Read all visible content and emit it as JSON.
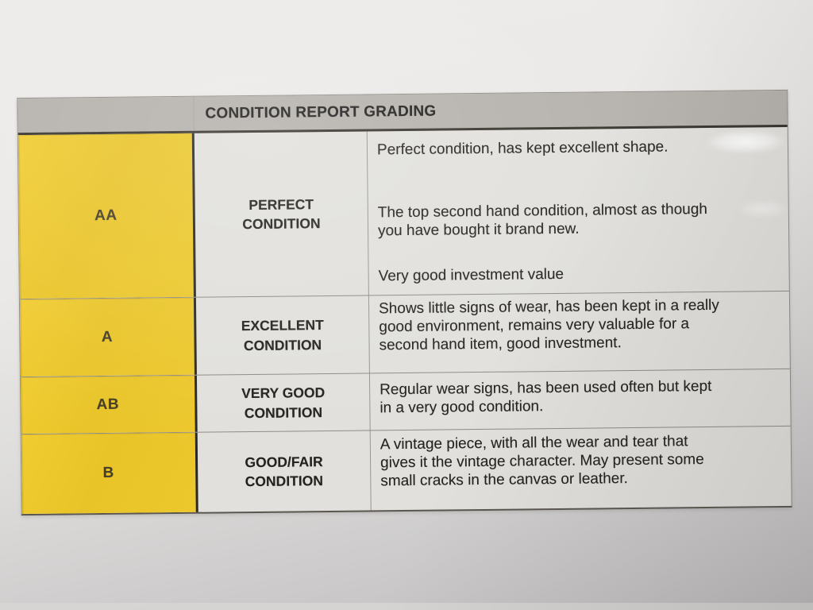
{
  "table": {
    "title": "CONDITION REPORT GRADING",
    "rows": [
      {
        "grade": "AA",
        "condition": "PERFECT\nCONDITION",
        "paragraphs": [
          "Perfect condition, has kept excellent shape.",
          "The top second hand condition, almost as though\nyou have bought it brand new.",
          "Very good investment value"
        ]
      },
      {
        "grade": "A",
        "condition": "EXCELLENT\nCONDITION",
        "paragraphs": [
          "Shows little signs of wear, has been kept in a really\ngood environment, remains very valuable for a\nsecond hand item, good investment."
        ]
      },
      {
        "grade": "AB",
        "condition": "VERY GOOD\nCONDITION",
        "paragraphs": [
          "Regular wear signs, has been used often but kept\nin a very good condition."
        ]
      },
      {
        "grade": "B",
        "condition": "GOOD/FAIR\nCONDITION",
        "paragraphs": [
          "A vintage piece, with all the wear and tear that\ngives it the vintage character. May present some\nsmall cracks in the canvas or leather."
        ]
      }
    ],
    "colors": {
      "grade_cell_bg": "#e9c429",
      "header_bg": "#b4b0ab",
      "cell_bg": "#e1e0dc",
      "border_dark": "#2b2822"
    }
  }
}
